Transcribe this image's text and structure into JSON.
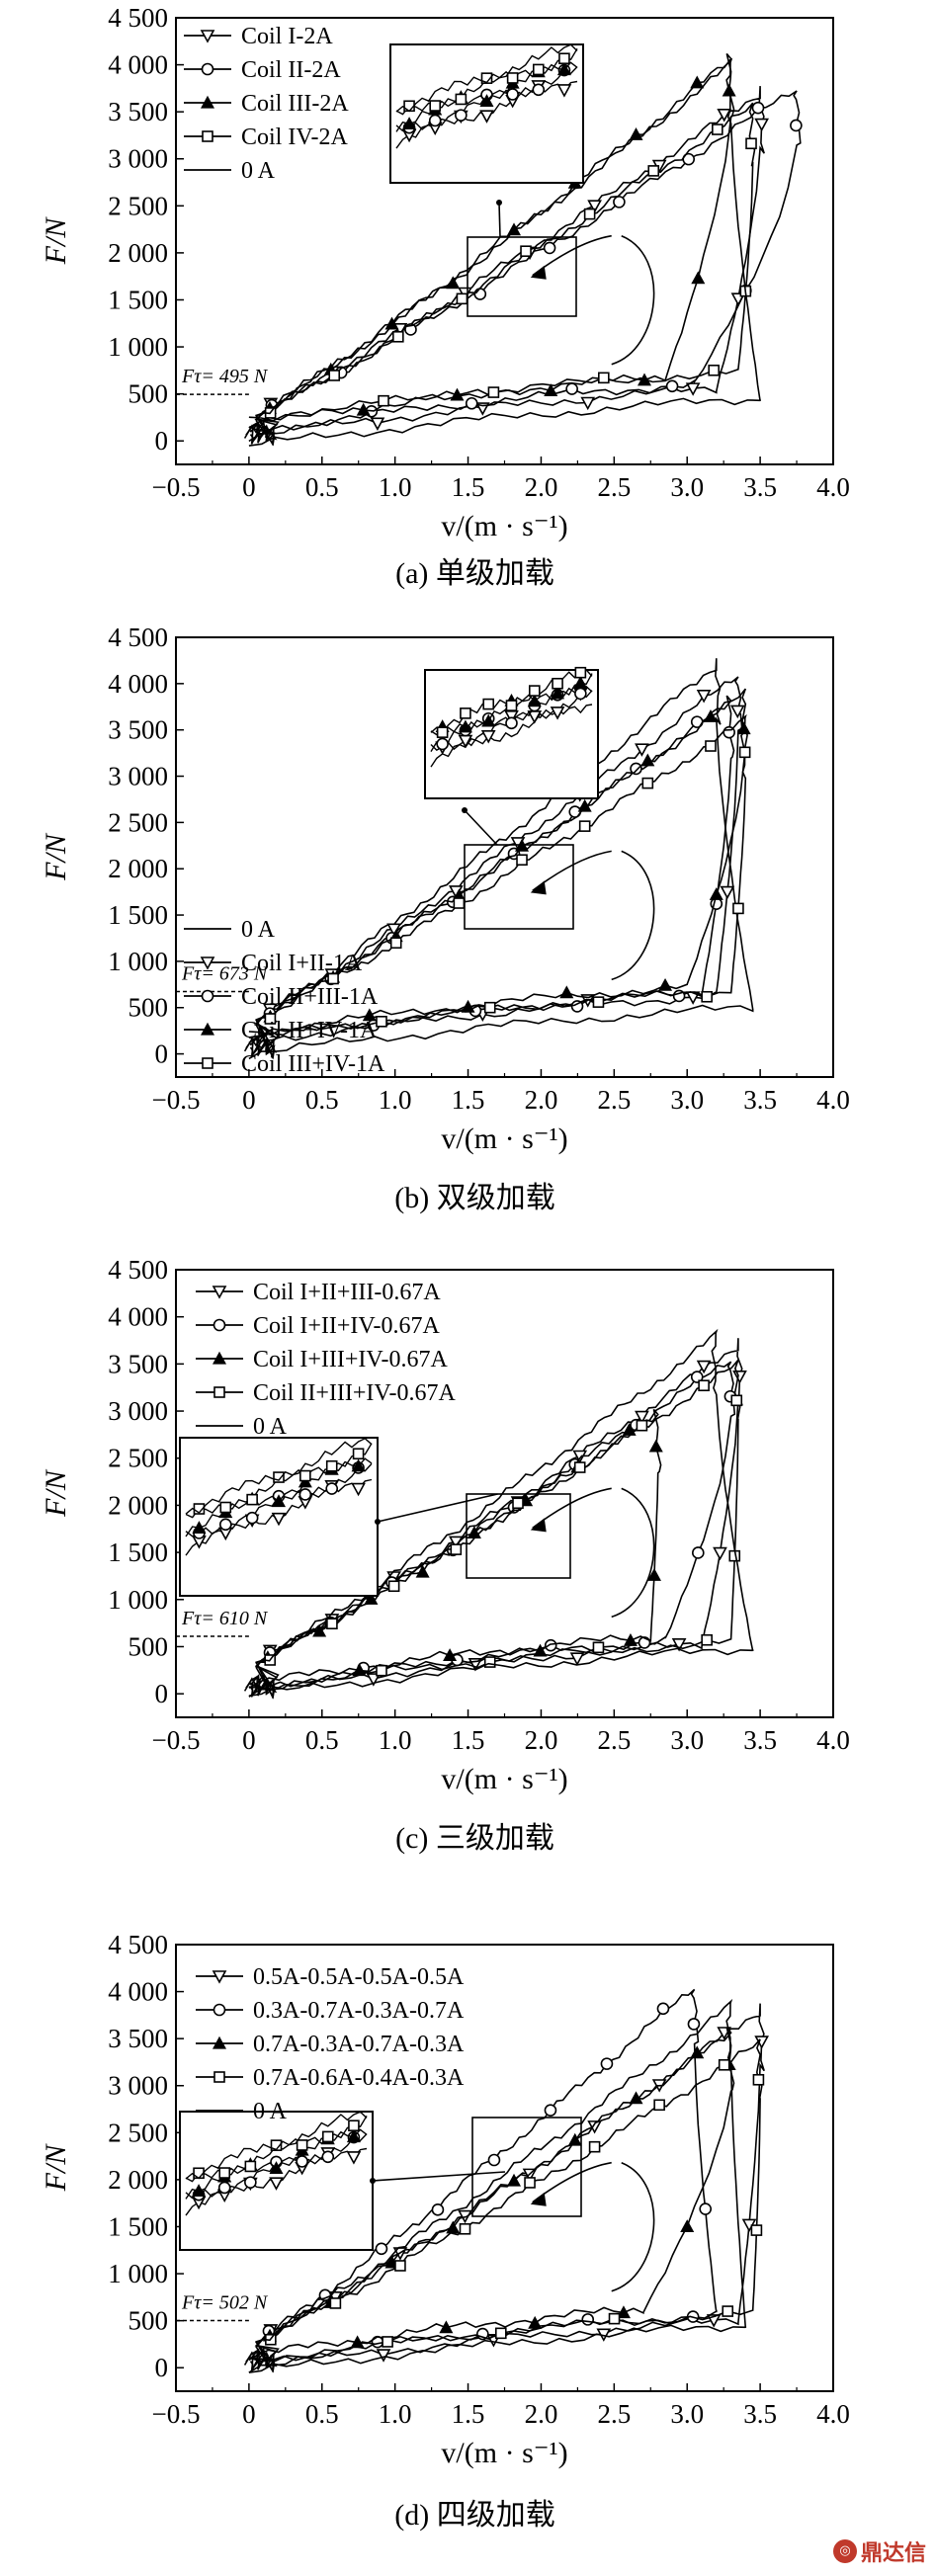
{
  "watermark": "鼎达信",
  "chart_data": [
    {
      "type": "line",
      "caption": "(a) 单级加载",
      "xlabel": "v/(m · s⁻¹)",
      "ylabel": "F/N",
      "xlim": [
        -0.5,
        4.0
      ],
      "ylim": [
        -250,
        4500
      ],
      "xticks": [
        "−0.5",
        "0",
        "0.5",
        "1.0",
        "1.5",
        "2.0",
        "2.5",
        "3.0",
        "3.5",
        "4.0"
      ],
      "yticks": [
        "0",
        "500",
        "1 000",
        "1 500",
        "2 000",
        "2 500",
        "3 000",
        "3 500",
        "4 000",
        "4 500"
      ],
      "threshold_label": "Fτ= 495 N",
      "threshold_value": 495,
      "legend_position": "top-left",
      "series": [
        {
          "name": "Coil I-2A",
          "marker": "triangle-down",
          "peak": [
            3.5,
            3700
          ],
          "x_return": 3.2,
          "f_low": 250,
          "phase": 0
        },
        {
          "name": "Coil II-2A",
          "marker": "circle",
          "peak": [
            3.75,
            3750
          ],
          "x_return": 3.05,
          "f_low": 300,
          "phase": 1
        },
        {
          "name": "Coil III-2A",
          "marker": "triangle-up",
          "peak": [
            3.3,
            4050
          ],
          "x_return": 2.85,
          "f_low": 380,
          "phase": 2
        },
        {
          "name": "Coil IV-2A",
          "marker": "square",
          "peak": [
            3.45,
            3550
          ],
          "x_return": 3.35,
          "f_low": 430,
          "phase": 3
        },
        {
          "name": "0 A",
          "marker": "none",
          "peak": [
            3.3,
            4000
          ],
          "x_return": 3.5,
          "f_low": 150,
          "phase": 4
        }
      ]
    },
    {
      "type": "line",
      "caption": "(b) 双级加载",
      "xlabel": "v/(m · s⁻¹)",
      "ylabel": "F/N",
      "xlim": [
        -0.5,
        4.0
      ],
      "ylim": [
        -250,
        4500
      ],
      "xticks": [
        "−0.5",
        "0",
        "0.5",
        "1.0",
        "1.5",
        "2.0",
        "2.5",
        "3.0",
        "3.5",
        "4.0"
      ],
      "yticks": [
        "0",
        "500",
        "1 000",
        "1 500",
        "2 000",
        "2 500",
        "3 000",
        "3 500",
        "4 000",
        "4 500"
      ],
      "threshold_label": "Fτ= 673 N",
      "threshold_value": 673,
      "legend_position": "middle-left",
      "series": [
        {
          "name": "0 A",
          "marker": "none",
          "peak": [
            3.2,
            4200
          ],
          "x_return": 3.45,
          "f_low": 200,
          "phase": 0
        },
        {
          "name": "Coil I+II-1A",
          "marker": "triangle-down",
          "peak": [
            3.35,
            4100
          ],
          "x_return": 3.2,
          "f_low": 330,
          "phase": 1
        },
        {
          "name": "Coil II+III-1A",
          "marker": "circle",
          "peak": [
            3.3,
            3800
          ],
          "x_return": 3.1,
          "f_low": 360,
          "phase": 2
        },
        {
          "name": "Coil II+IV-1A",
          "marker": "triangle-up",
          "peak": [
            3.4,
            3900
          ],
          "x_return": 3.0,
          "f_low": 420,
          "phase": 3
        },
        {
          "name": "Coil III+IV-1A",
          "marker": "square",
          "peak": [
            3.4,
            3600
          ],
          "x_return": 3.3,
          "f_low": 380,
          "phase": 4
        }
      ]
    },
    {
      "type": "line",
      "caption": "(c) 三级加载",
      "xlabel": "v/(m · s⁻¹)",
      "ylabel": "F/N",
      "xlim": [
        -0.5,
        4.0
      ],
      "ylim": [
        -250,
        4500
      ],
      "xticks": [
        "−0.5",
        "0",
        "0.5",
        "1.0",
        "1.5",
        "2.0",
        "2.5",
        "3.0",
        "3.5",
        "4.0"
      ],
      "yticks": [
        "0",
        "500",
        "1 000",
        "1 500",
        "2 000",
        "2 500",
        "3 000",
        "3 500",
        "4 000",
        "4 500"
      ],
      "threshold_label": "Fτ= 610 N",
      "threshold_value": 610,
      "legend_position": "top-left",
      "series": [
        {
          "name": "Coil I+II+III-0.67A",
          "marker": "triangle-down",
          "peak": [
            3.35,
            3700
          ],
          "x_return": 3.1,
          "f_low": 220,
          "phase": 0
        },
        {
          "name": "Coil I+II+IV-0.67A",
          "marker": "circle",
          "peak": [
            3.3,
            3550
          ],
          "x_return": 2.85,
          "f_low": 260,
          "phase": 1
        },
        {
          "name": "Coil I+III+IV-0.67A",
          "marker": "triangle-up",
          "peak": [
            2.8,
            2950
          ],
          "x_return": 2.75,
          "f_low": 300,
          "phase": 2
        },
        {
          "name": "Coil II+III+IV-0.67A",
          "marker": "square",
          "peak": [
            3.35,
            3500
          ],
          "x_return": 3.3,
          "f_low": 250,
          "phase": 3
        },
        {
          "name": "0 A",
          "marker": "none",
          "peak": [
            3.2,
            3800
          ],
          "x_return": 3.45,
          "f_low": 180,
          "phase": 4
        }
      ]
    },
    {
      "type": "line",
      "caption": "(d) 四级加载",
      "xlabel": "v/(m · s⁻¹)",
      "ylabel": "F/N",
      "xlim": [
        -0.5,
        4.0
      ],
      "ylim": [
        -250,
        4500
      ],
      "xticks": [
        "−0.5",
        "0",
        "0.5",
        "1.0",
        "1.5",
        "2.0",
        "2.5",
        "3.0",
        "3.5",
        "4.0"
      ],
      "yticks": [
        "0",
        "500",
        "1 000",
        "1 500",
        "2 000",
        "2 500",
        "3 000",
        "3 500",
        "4 000",
        "4 500"
      ],
      "threshold_label": "Fτ= 502 N",
      "threshold_value": 502,
      "legend_position": "top-left",
      "series": [
        {
          "name": "0.5A-0.5A-0.5A-0.5A",
          "marker": "triangle-down",
          "peak": [
            3.5,
            3800
          ],
          "x_return": 3.35,
          "f_low": 200,
          "phase": 0
        },
        {
          "name": "0.3A-0.7A-0.3A-0.7A",
          "marker": "circle",
          "peak": [
            3.05,
            4050
          ],
          "x_return": 3.2,
          "f_low": 260,
          "phase": 1
        },
        {
          "name": "0.7A-0.3A-0.7A-0.3A",
          "marker": "triangle-up",
          "peak": [
            3.3,
            3550
          ],
          "x_return": 2.7,
          "f_low": 320,
          "phase": 2
        },
        {
          "name": "0.7A-0.6A-0.4A-0.3A",
          "marker": "square",
          "peak": [
            3.5,
            3450
          ],
          "x_return": 3.45,
          "f_low": 280,
          "phase": 3
        },
        {
          "name": "0 A",
          "marker": "none",
          "peak": [
            3.3,
            3850
          ],
          "x_return": 3.4,
          "f_low": 150,
          "phase": 4
        }
      ]
    }
  ]
}
